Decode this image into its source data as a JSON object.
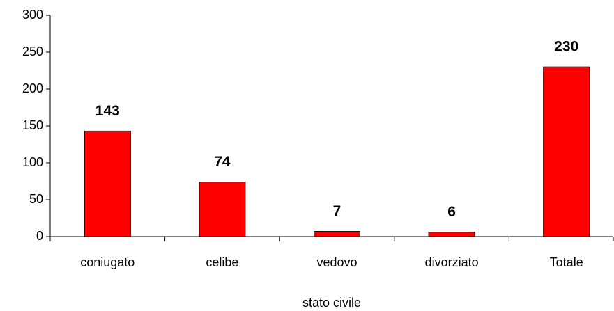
{
  "chart_data": {
    "type": "bar",
    "x_label": "stato civile",
    "categories": [
      "coniugato",
      "celibe",
      "vedovo",
      "divorziato",
      "Totale"
    ],
    "values": [
      143,
      74,
      7,
      6,
      230
    ],
    "color": "#ff0000",
    "ylim": [
      0,
      300
    ],
    "yticks": [
      0,
      50,
      100,
      150,
      200,
      250,
      300
    ],
    "grid": false,
    "data_labels": true
  }
}
